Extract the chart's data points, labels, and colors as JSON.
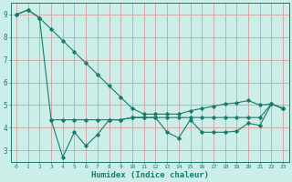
{
  "xlabel": "Humidex (Indice chaleur)",
  "bg_color": "#cceee8",
  "grid_color": "#d4a0a0",
  "line_color": "#1a7a6e",
  "xlim": [
    -0.5,
    23.5
  ],
  "ylim": [
    2.5,
    9.5
  ],
  "x": [
    0,
    1,
    2,
    3,
    4,
    5,
    6,
    7,
    8,
    9,
    10,
    11,
    12,
    13,
    14,
    15,
    16,
    17,
    18,
    19,
    20,
    21,
    22,
    23
  ],
  "line1": [
    9.0,
    9.2,
    8.85,
    8.35,
    7.85,
    7.35,
    6.85,
    6.35,
    5.85,
    5.35,
    4.85,
    4.6,
    4.6,
    4.6,
    4.6,
    4.75,
    4.85,
    4.95,
    5.05,
    5.1,
    5.2,
    5.0,
    5.05,
    4.85
  ],
  "line2": [
    9.0,
    9.2,
    8.85,
    4.35,
    2.7,
    3.8,
    3.2,
    3.7,
    4.35,
    4.35,
    4.45,
    4.45,
    4.45,
    3.8,
    3.55,
    4.35,
    3.8,
    3.8,
    3.8,
    3.85,
    4.2,
    4.1,
    5.05,
    4.85
  ],
  "line3": [
    null,
    null,
    null,
    4.35,
    4.35,
    4.35,
    4.35,
    4.35,
    4.35,
    4.35,
    4.45,
    4.45,
    4.45,
    4.45,
    4.45,
    4.45,
    4.45,
    4.45,
    4.45,
    4.45,
    4.45,
    4.45,
    5.05,
    4.85
  ],
  "yticks": [
    3,
    4,
    5,
    6,
    7,
    8,
    9
  ],
  "xticks": [
    0,
    1,
    2,
    3,
    4,
    5,
    6,
    7,
    8,
    9,
    10,
    11,
    12,
    13,
    14,
    15,
    16,
    17,
    18,
    19,
    20,
    21,
    22,
    23
  ]
}
